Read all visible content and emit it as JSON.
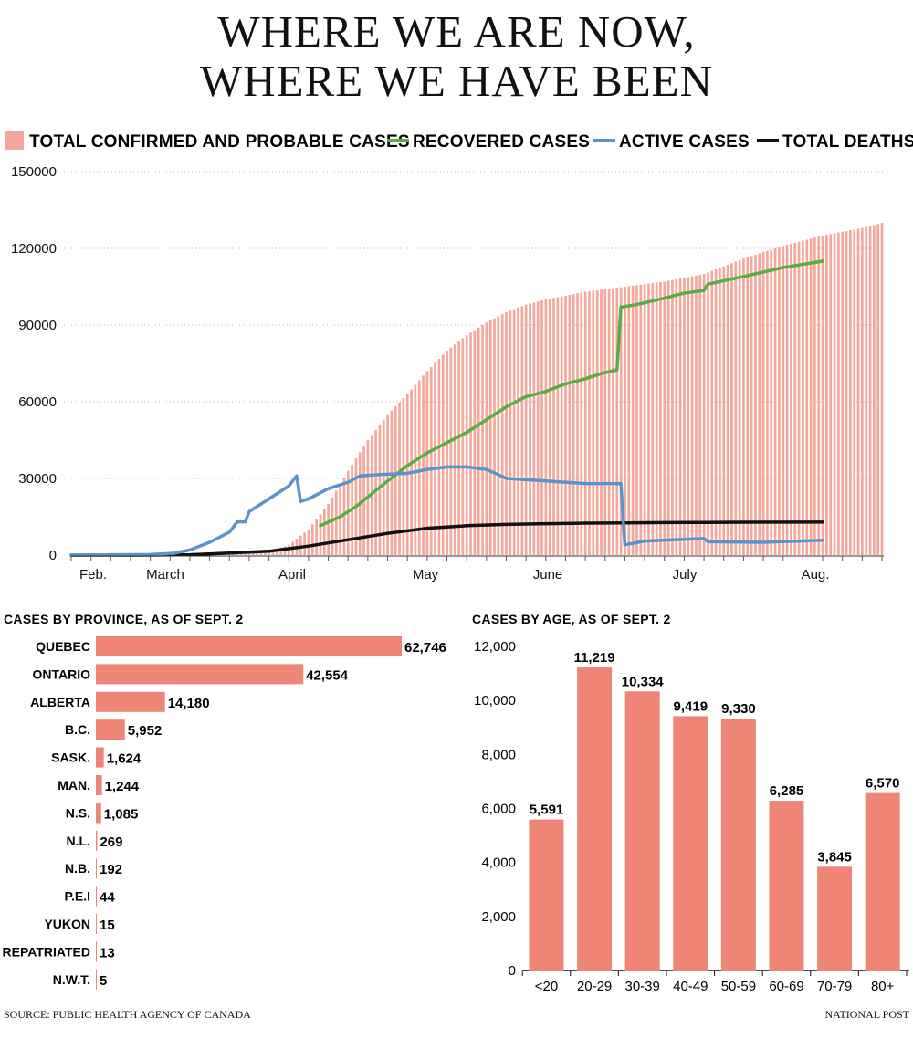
{
  "header": {
    "title_line1": "WHERE WE ARE NOW,",
    "title_line2": "WHERE WE HAVE BEEN"
  },
  "colors": {
    "cases": "#f4a89c",
    "bars": "#ef8576",
    "recovered": "#5aac44",
    "active": "#5b93cc",
    "deaths": "#111111",
    "grid": "#bbbbbb"
  },
  "chart_data": [
    {
      "type": "area",
      "legend": {
        "cases": "TOTAL CONFIRMED AND PROBABLE CASES",
        "recovered": "RECOVERED CASES",
        "active": "ACTIVE CASES",
        "deaths": "TOTAL DEATHS"
      },
      "legend_position": "top",
      "ylim": [
        0,
        150000
      ],
      "yticks": [
        "0",
        "30000",
        "60000",
        "90000",
        "120000",
        "150000"
      ],
      "xticks": [
        "Feb.",
        "March",
        "April",
        "May",
        "June",
        "July",
        "Aug."
      ],
      "grid": true,
      "series": [
        {
          "name": "TOTAL CONFIRMED AND PROBABLE CASES",
          "type": "bar",
          "points": [
            [
              0,
              0
            ],
            [
              30,
              100
            ],
            [
              45,
              500
            ],
            [
              50,
              1500
            ],
            [
              55,
              4000
            ],
            [
              60,
              10000
            ],
            [
              65,
              20000
            ],
            [
              70,
              33000
            ],
            [
              75,
              45000
            ],
            [
              80,
              55000
            ],
            [
              85,
              63000
            ],
            [
              90,
              72000
            ],
            [
              95,
              80000
            ],
            [
              100,
              86000
            ],
            [
              105,
              91000
            ],
            [
              110,
              95000
            ],
            [
              115,
              98000
            ],
            [
              120,
              100000
            ],
            [
              130,
              103000
            ],
            [
              140,
              105000
            ],
            [
              150,
              107000
            ],
            [
              160,
              110000
            ],
            [
              170,
              116000
            ],
            [
              180,
              121000
            ],
            [
              190,
              125000
            ],
            [
              200,
              128000
            ],
            [
              205,
              130000
            ]
          ]
        },
        {
          "name": "RECOVERED CASES",
          "type": "line",
          "points": [
            [
              63,
              11500
            ],
            [
              68,
              15000
            ],
            [
              72,
              19000
            ],
            [
              76,
              24000
            ],
            [
              80,
              29000
            ],
            [
              85,
              35000
            ],
            [
              90,
              40000
            ],
            [
              95,
              44000
            ],
            [
              100,
              48000
            ],
            [
              105,
              53000
            ],
            [
              110,
              58000
            ],
            [
              115,
              62000
            ],
            [
              120,
              64000
            ],
            [
              125,
              67000
            ],
            [
              130,
              69000
            ],
            [
              134,
              71000
            ],
            [
              138,
              72500
            ],
            [
              139,
              97000
            ],
            [
              143,
              98000
            ],
            [
              150,
              100500
            ],
            [
              155,
              102500
            ],
            [
              160,
              103500
            ],
            [
              161,
              106000
            ],
            [
              170,
              109000
            ],
            [
              180,
              112500
            ],
            [
              190,
              115000
            ]
          ]
        },
        {
          "name": "ACTIVE CASES",
          "type": "line",
          "points": [
            [
              0,
              0
            ],
            [
              20,
              200
            ],
            [
              26,
              700
            ],
            [
              30,
              2000
            ],
            [
              35,
              5000
            ],
            [
              40,
              9000
            ],
            [
              42,
              13000
            ],
            [
              44,
              13000
            ],
            [
              45,
              17000
            ],
            [
              50,
              22000
            ],
            [
              55,
              27000
            ],
            [
              57,
              31000
            ],
            [
              58,
              21000
            ],
            [
              60,
              22000
            ],
            [
              65,
              26000
            ],
            [
              70,
              28500
            ],
            [
              73,
              31000
            ],
            [
              78,
              31500
            ],
            [
              85,
              32000
            ],
            [
              90,
              33500
            ],
            [
              95,
              34500
            ],
            [
              100,
              34500
            ],
            [
              105,
              33500
            ],
            [
              108,
              31500
            ],
            [
              110,
              30000
            ],
            [
              120,
              29000
            ],
            [
              130,
              28000
            ],
            [
              139,
              28000
            ],
            [
              140,
              4000
            ],
            [
              145,
              5500
            ],
            [
              160,
              6500
            ],
            [
              161,
              5200
            ],
            [
              175,
              5000
            ],
            [
              190,
              5800
            ]
          ]
        },
        {
          "name": "TOTAL DEATHS",
          "type": "line",
          "points": [
            [
              0,
              0
            ],
            [
              20,
              0
            ],
            [
              30,
              150
            ],
            [
              40,
              800
            ],
            [
              50,
              1500
            ],
            [
              55,
              2500
            ],
            [
              60,
              3500
            ],
            [
              70,
              6000
            ],
            [
              80,
              8500
            ],
            [
              90,
              10500
            ],
            [
              100,
              11500
            ],
            [
              110,
              12000
            ],
            [
              120,
              12300
            ],
            [
              130,
              12500
            ],
            [
              140,
              12600
            ],
            [
              150,
              12700
            ],
            [
              160,
              12800
            ],
            [
              170,
              12850
            ],
            [
              190,
              12900
            ]
          ]
        }
      ]
    },
    {
      "type": "bar",
      "title": "CASES BY PROVINCE, AS OF SEPT. 2",
      "orientation": "horizontal",
      "categories": [
        "QUEBEC",
        "ONTARIO",
        "ALBERTA",
        "B.C.",
        "SASK.",
        "MAN.",
        "N.S.",
        "N.L.",
        "N.B.",
        "P.E.I",
        "YUKON",
        "REPATRIATED",
        "N.W.T."
      ],
      "values": [
        62746,
        42554,
        14180,
        5952,
        1624,
        1244,
        1085,
        269,
        192,
        44,
        15,
        13,
        5
      ],
      "labels": [
        "62,746",
        "42,554",
        "14,180",
        "5,952",
        "1,624",
        "1,244",
        "1,085",
        "269",
        "192",
        "44",
        "15",
        "13",
        "5"
      ]
    },
    {
      "type": "bar",
      "title": "CASES BY AGE, AS OF SEPT. 2",
      "categories": [
        "<20",
        "20-29",
        "30-39",
        "40-49",
        "50-59",
        "60-69",
        "70-79",
        "80+"
      ],
      "values": [
        5591,
        11219,
        10334,
        9419,
        9330,
        6285,
        3845,
        6570
      ],
      "labels": [
        "5,591",
        "11,219",
        "10,334",
        "9,419",
        "9,330",
        "6,285",
        "3,845",
        "6,570"
      ],
      "ylim": [
        0,
        12000
      ],
      "yticks": [
        "0",
        "2,000",
        "4,000",
        "6,000",
        "8,000",
        "10,000",
        "12,000"
      ]
    }
  ],
  "footer": {
    "source": "SOURCE: PUBLIC HEALTH AGENCY OF CANADA",
    "brand": "NATIONAL POST"
  }
}
